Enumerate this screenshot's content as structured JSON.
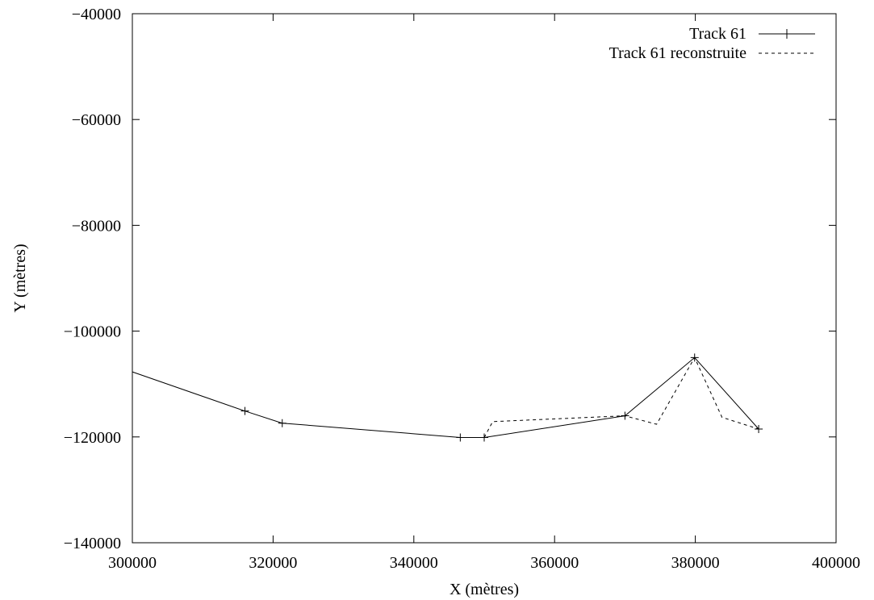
{
  "chart_data": {
    "type": "line",
    "title": "",
    "xlabel": "X (mètres)",
    "ylabel": "Y (mètres)",
    "xlim": [
      300000,
      400000
    ],
    "ylim": [
      -140000,
      -40000
    ],
    "xticks": [
      300000,
      320000,
      340000,
      360000,
      380000,
      400000
    ],
    "yticks": [
      -140000,
      -120000,
      -100000,
      -80000,
      -60000,
      -40000
    ],
    "xtick_labels": [
      "300000",
      "320000",
      "340000",
      "360000",
      "380000",
      "400000"
    ],
    "ytick_labels": [
      "−140000",
      "−120000",
      "−100000",
      "−80000",
      "−60000",
      "−40000"
    ],
    "grid": false,
    "legend_position": "top-right",
    "series": [
      {
        "name": "Track 61",
        "line_style": "solid",
        "marker": "plus",
        "color": "#000000",
        "x": [
          300000,
          316000,
          321300,
          346600,
          350000,
          370000,
          379900,
          389000
        ],
        "y": [
          -107700,
          -115100,
          -117400,
          -120100,
          -120100,
          -116000,
          -105000,
          -118500
        ],
        "markers": [
          false,
          true,
          true,
          true,
          true,
          true,
          true,
          true
        ]
      },
      {
        "name": "Track 61 reconstruite",
        "line_style": "dashed",
        "marker": "none",
        "color": "#000000",
        "x": [
          350000,
          351200,
          370000,
          374500,
          379900,
          383800,
          389000
        ],
        "y": [
          -120100,
          -117100,
          -116000,
          -117600,
          -105000,
          -116300,
          -118500
        ]
      }
    ]
  }
}
